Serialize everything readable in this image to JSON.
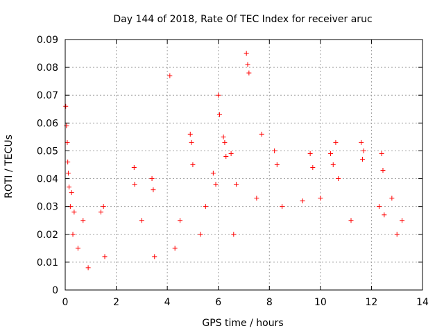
{
  "chart_data": {
    "type": "scatter",
    "title": "Day 144 of 2018, Rate Of TEC Index for receiver aruc",
    "xlabel": "GPS time / hours",
    "ylabel": "ROTI / TECUs",
    "xlim": [
      0,
      14
    ],
    "ylim": [
      0,
      0.09
    ],
    "xticks": [
      0,
      2,
      4,
      6,
      8,
      10,
      12,
      14
    ],
    "xtick_labels": [
      "0",
      "2",
      "4",
      "6",
      "8",
      "10",
      "12",
      "14"
    ],
    "yticks": [
      0,
      0.01,
      0.02,
      0.03,
      0.04,
      0.05,
      0.06,
      0.07,
      0.08,
      0.09
    ],
    "ytick_labels": [
      "0",
      "0.01",
      "0.02",
      "0.03",
      "0.04",
      "0.05",
      "0.06",
      "0.07",
      "0.08",
      "0.09"
    ],
    "grid": true,
    "marker": "+",
    "color": "#ff0000",
    "series": [
      {
        "name": "ROTI",
        "x": [
          0.02,
          0.05,
          0.08,
          0.1,
          0.12,
          0.15,
          0.2,
          0.25,
          0.3,
          0.35,
          0.5,
          0.7,
          0.9,
          1.4,
          1.5,
          1.55,
          2.7,
          2.72,
          3.0,
          3.4,
          3.45,
          3.5,
          4.1,
          4.3,
          4.5,
          4.9,
          4.95,
          5.0,
          5.3,
          5.5,
          5.8,
          5.9,
          6.0,
          6.05,
          6.2,
          6.25,
          6.3,
          6.5,
          6.6,
          6.7,
          7.1,
          7.15,
          7.2,
          7.5,
          7.7,
          8.2,
          8.3,
          8.5,
          9.3,
          9.6,
          9.7,
          10.0,
          10.4,
          10.5,
          10.6,
          10.7,
          11.2,
          11.6,
          11.65,
          11.7,
          12.3,
          12.4,
          12.45,
          12.5,
          12.8,
          13.0,
          13.2
        ],
        "y": [
          0.066,
          0.059,
          0.053,
          0.046,
          0.042,
          0.037,
          0.03,
          0.035,
          0.02,
          0.028,
          0.015,
          0.025,
          0.008,
          0.028,
          0.03,
          0.012,
          0.044,
          0.038,
          0.025,
          0.04,
          0.036,
          0.012,
          0.077,
          0.015,
          0.025,
          0.056,
          0.053,
          0.045,
          0.02,
          0.03,
          0.042,
          0.038,
          0.07,
          0.063,
          0.055,
          0.053,
          0.048,
          0.049,
          0.02,
          0.038,
          0.085,
          0.081,
          0.078,
          0.033,
          0.056,
          0.05,
          0.045,
          0.03,
          0.032,
          0.049,
          0.044,
          0.033,
          0.049,
          0.045,
          0.053,
          0.04,
          0.025,
          0.053,
          0.047,
          0.05,
          0.03,
          0.049,
          0.043,
          0.027,
          0.033,
          0.02,
          0.025
        ]
      }
    ]
  }
}
